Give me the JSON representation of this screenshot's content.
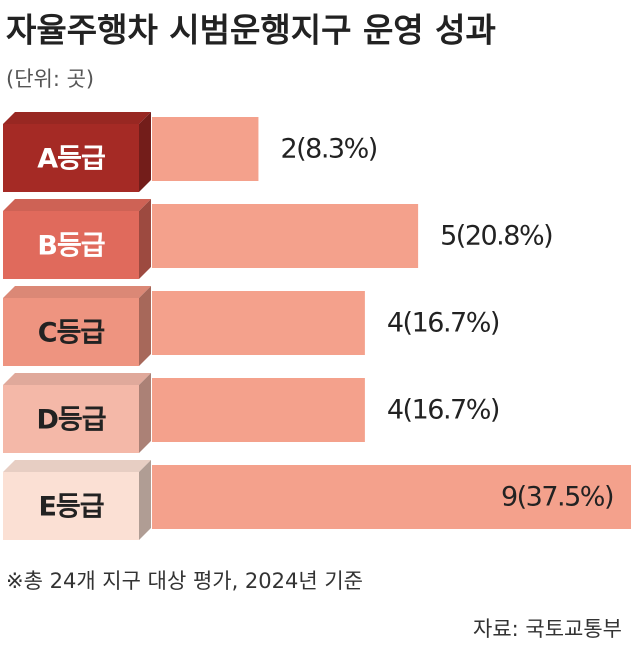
{
  "chart_data": {
    "type": "bar",
    "orientation": "horizontal",
    "title": "자율주행차 시범운행지구 운영 성과",
    "subtitle": "(단위: 곳)",
    "categories": [
      "A등급",
      "B등급",
      "C등급",
      "D등급",
      "E등급"
    ],
    "values": [
      2,
      5,
      4,
      4,
      9
    ],
    "value_labels": [
      "2(8.3%)",
      "5(20.8%)",
      "4(16.7%)",
      "4(16.7%)",
      "9(37.5%)"
    ],
    "color": "#f4a18c",
    "category_colors": [
      "#a52a25",
      "#e06a5c",
      "#ee9480",
      "#f4b8a8",
      "#fbe0d4"
    ],
    "category_text_colors": [
      "#ffffff",
      "#ffffff",
      "#222222",
      "#222222",
      "#222222"
    ],
    "note": "※총 24개 지구 대상 평가, 2024년 기준",
    "source": "자료: 국토교통부"
  }
}
